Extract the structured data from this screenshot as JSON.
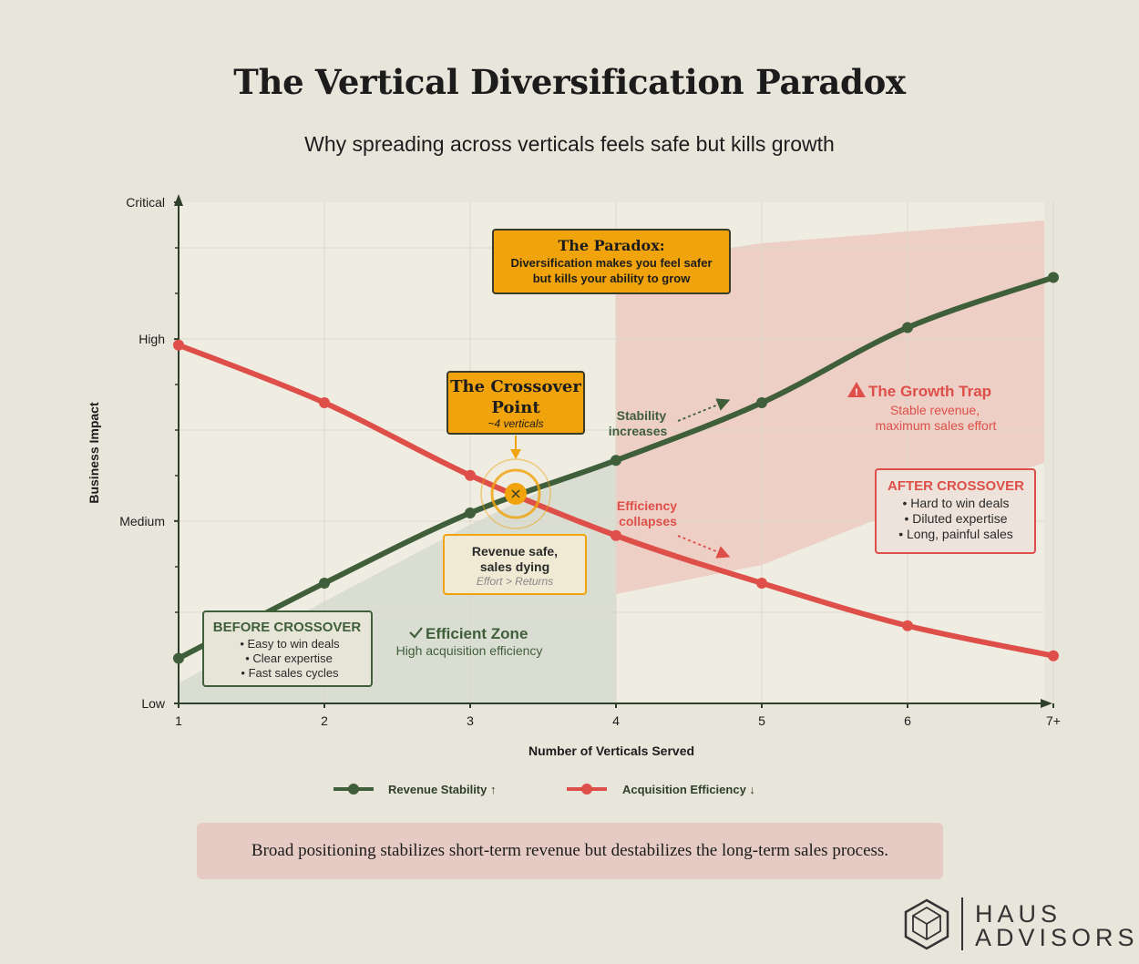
{
  "title": "The Vertical Diversification Paradox",
  "subtitle": "Why spreading across verticals feels safe but kills growth",
  "colors": {
    "background": "#e8e5da",
    "plot_bg": "#efece2",
    "green": "#3f5e3a",
    "red": "#df4f49",
    "gold": "#f0a30a",
    "trap_fill": "#eccac0",
    "efficient_fill": "#d7dbcf"
  },
  "chart_data": {
    "type": "line",
    "xlabel": "Number of Verticals Served",
    "ylabel": "Business Impact",
    "categories": [
      "1",
      "2",
      "3",
      "4",
      "5",
      "6",
      "7+"
    ],
    "y_ticks": [
      "Low",
      "Medium",
      "High",
      "Critical"
    ],
    "ylim": [
      0,
      100
    ],
    "grid": true,
    "series": [
      {
        "name": "Revenue Stability ↑",
        "color": "#3f5e3a",
        "values": [
          9,
          24,
          38,
          48.5,
          60,
          75,
          85
        ]
      },
      {
        "name": "Acquisition Efficiency ↓",
        "color": "#df4f49",
        "values": [
          71.5,
          60,
          45.5,
          33.5,
          24,
          15.5,
          9.5
        ]
      }
    ],
    "crossover_x": 3.32
  },
  "annotations": {
    "paradox": {
      "title": "The Paradox:",
      "line1": "Diversification makes you feel safer",
      "line2": "but kills your ability to grow"
    },
    "crossover": {
      "title_line1": "The Crossover",
      "title_line2": "Point",
      "sub": "~4 verticals"
    },
    "revenue_safe": {
      "line1": "Revenue safe,",
      "line2": "sales dying",
      "sub": "Effort > Returns"
    },
    "stability": {
      "line1": "Stability",
      "line2": "increases"
    },
    "efficiency": {
      "line1": "Efficiency",
      "line2": "collapses"
    },
    "growth_trap": {
      "title": "The Growth Trap",
      "line1": "Stable revenue,",
      "line2": "maximum sales effort"
    },
    "after_crossover": {
      "title": "AFTER CROSSOVER",
      "items": [
        "• Hard to win deals",
        "• Diluted expertise",
        "• Long, painful sales"
      ]
    },
    "before_crossover": {
      "title": "BEFORE CROSSOVER",
      "items": [
        "• Easy to win deals",
        "• Clear expertise",
        "• Fast sales cycles"
      ]
    },
    "efficient_zone": {
      "title": "Efficient Zone",
      "sub": "High acquisition efficiency"
    }
  },
  "footer": "Broad positioning stabilizes short-term revenue but destabilizes the long-term sales process.",
  "logo": {
    "line1": "HAUS",
    "line2": "ADVISORS",
    "icon": "hexagon-cube-icon"
  }
}
